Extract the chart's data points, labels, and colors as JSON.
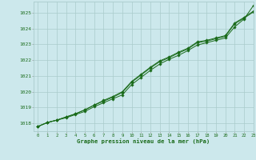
{
  "title": "Graphe pression niveau de la mer (hPa)",
  "bg_color": "#cce8ec",
  "grid_color": "#aacccc",
  "line_color": "#1a6b1a",
  "marker_color": "#1a6b1a",
  "xlim": [
    -0.5,
    23
  ],
  "ylim": [
    1017.5,
    1025.7
  ],
  "yticks": [
    1018,
    1019,
    1020,
    1021,
    1022,
    1023,
    1024,
    1025
  ],
  "xticks": [
    0,
    1,
    2,
    3,
    4,
    5,
    6,
    7,
    8,
    9,
    10,
    11,
    12,
    13,
    14,
    15,
    16,
    17,
    18,
    19,
    20,
    21,
    22,
    23
  ],
  "series1": [
    1017.8,
    1018.05,
    1018.2,
    1018.35,
    1018.55,
    1018.75,
    1019.05,
    1019.3,
    1019.55,
    1019.8,
    1020.45,
    1020.9,
    1021.35,
    1021.75,
    1022.05,
    1022.3,
    1022.6,
    1022.95,
    1023.1,
    1023.25,
    1023.4,
    1024.1,
    1024.6,
    1025.45
  ],
  "series2": [
    1017.8,
    1018.05,
    1018.2,
    1018.4,
    1018.6,
    1018.85,
    1019.15,
    1019.4,
    1019.65,
    1019.95,
    1020.6,
    1021.05,
    1021.5,
    1021.9,
    1022.15,
    1022.45,
    1022.7,
    1023.1,
    1023.2,
    1023.35,
    1023.5,
    1024.3,
    1024.65,
    1025.05
  ],
  "series3": [
    1017.8,
    1018.05,
    1018.2,
    1018.4,
    1018.6,
    1018.85,
    1019.15,
    1019.45,
    1019.7,
    1020.0,
    1020.65,
    1021.1,
    1021.55,
    1021.95,
    1022.2,
    1022.5,
    1022.75,
    1023.15,
    1023.25,
    1023.4,
    1023.55,
    1024.35,
    1024.7,
    1025.1
  ]
}
